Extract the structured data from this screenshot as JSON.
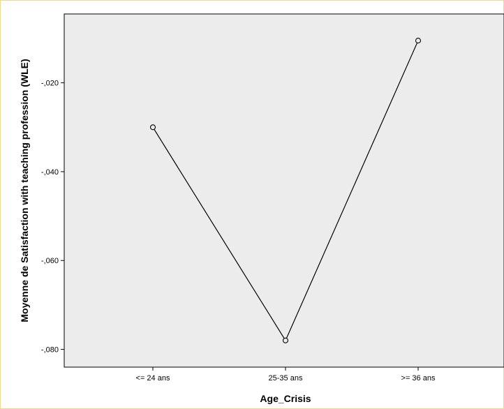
{
  "chart_data": {
    "type": "line",
    "categories": [
      "<= 24 ans",
      "25-35 ans",
      ">= 36 ans"
    ],
    "values": [
      -0.03,
      -0.078,
      -0.0105
    ],
    "xlabel": "Age_Crisis",
    "ylabel": "Moyenne de Satisfaction with teaching profession (WLE)",
    "ylim": [
      -0.084,
      -0.0045
    ],
    "yticks": [
      -0.02,
      -0.04,
      -0.06,
      -0.08
    ],
    "ytick_labels": [
      "-,020",
      "-,040",
      "-,060",
      "-,080"
    ],
    "grid": false,
    "colors": {
      "plot_background": "#ececec",
      "line": "#000000",
      "frame": "#f0d890"
    }
  }
}
